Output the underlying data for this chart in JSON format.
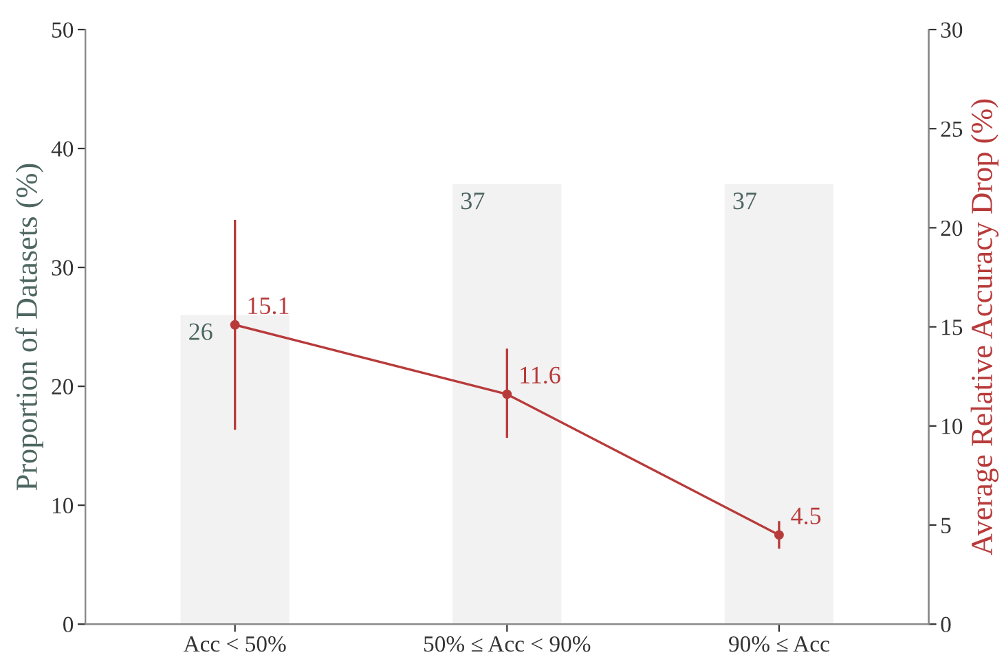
{
  "chart_data": {
    "type": "bar",
    "ylabel": "Proportion of Datasets (%)",
    "y2label": "Average Relative Accuracy Drop (%)",
    "categories": [
      "Acc < 50%",
      "50% ≤ Acc < 90%",
      "90% ≤ Acc"
    ],
    "series": [
      {
        "color": "#f2f2f2",
        "values": [
          26,
          37,
          37
        ]
      },
      {
        "type": "line",
        "axis": "y2",
        "color": "#b83a3a",
        "values": [
          15.1,
          11.6,
          4.5
        ],
        "errors": [
          [
            9.8,
            20.4
          ],
          [
            9.4,
            13.9
          ],
          [
            3.8,
            5.2
          ]
        ]
      }
    ],
    "ylim": [
      0,
      50
    ],
    "yticks": [
      0,
      10,
      20,
      30,
      40,
      50
    ],
    "y2lim": [
      0,
      30
    ],
    "y2ticks": [
      0,
      5,
      10,
      15,
      20,
      25,
      30
    ],
    "data_labels": true,
    "grid": false,
    "legend": false,
    "marker": "circle",
    "line_style": "solid"
  }
}
